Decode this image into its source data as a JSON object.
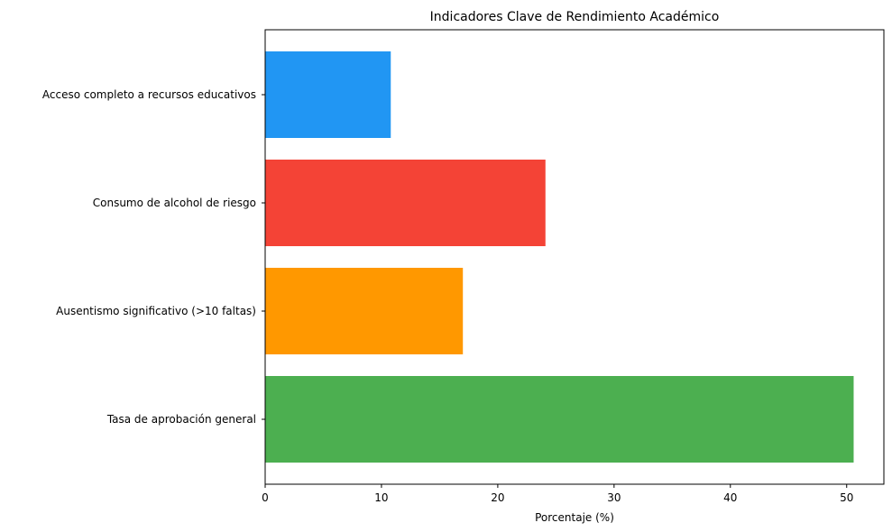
{
  "chart_data": {
    "type": "bar",
    "orientation": "horizontal",
    "title": "Indicadores Clave de Rendimiento Académico",
    "xlabel": "Porcentaje (%)",
    "ylabel": "",
    "xlim": [
      0,
      53.2
    ],
    "x_ticks": [
      "0",
      "10",
      "20",
      "30",
      "40",
      "50"
    ],
    "categories": [
      "Tasa de aprobación general",
      "Ausentismo significativo (>10 faltas)",
      "Consumo de alcohol de riesgo",
      "Acceso completo a recursos educativos"
    ],
    "values": [
      50.6,
      17.0,
      24.1,
      10.8
    ],
    "colors": [
      "#4caf50",
      "#ff9800",
      "#f44336",
      "#2196f3"
    ],
    "grid": false,
    "legend": "none"
  }
}
